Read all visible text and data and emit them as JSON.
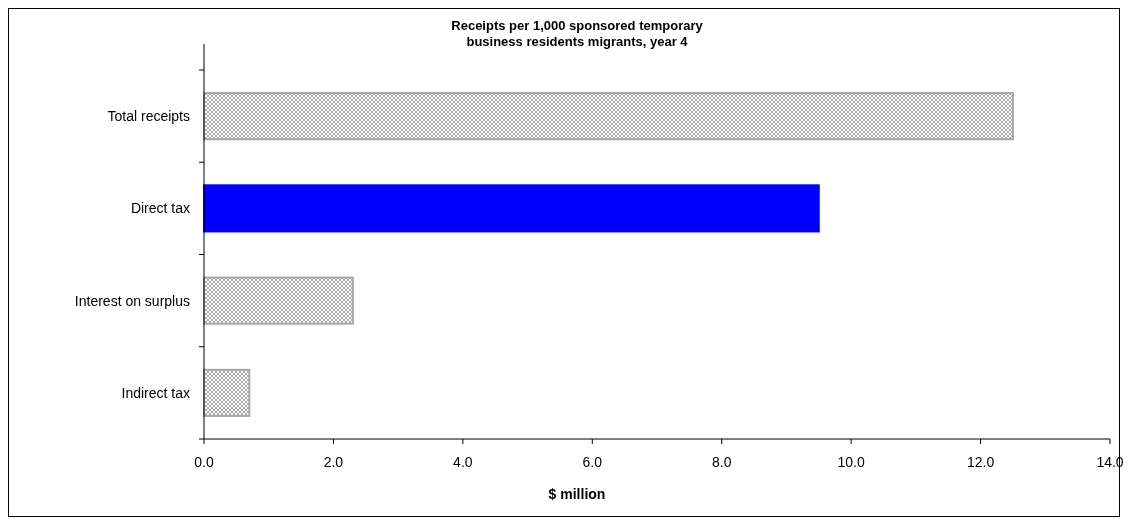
{
  "chart_data": {
    "type": "bar",
    "orientation": "horizontal",
    "title": "Receipts per 1,000 sponsored temporary\nbusiness residents migrants, year 4",
    "xlabel": "$ million",
    "categories": [
      "Total receipts",
      "Direct tax",
      "Interest on surplus",
      "Indirect tax"
    ],
    "values": [
      12.5,
      9.5,
      2.3,
      0.7
    ],
    "colors": [
      "#a8a8a8",
      "#0000ff",
      "#a8a8a8",
      "#a8a8a8"
    ],
    "xlim": [
      0,
      14
    ],
    "xticks": [
      {
        "value": 0,
        "label": "0.0"
      },
      {
        "value": 2,
        "label": "2.0"
      },
      {
        "value": 4,
        "label": "4.0"
      },
      {
        "value": 6,
        "label": "6.0"
      },
      {
        "value": 8,
        "label": "8.0"
      },
      {
        "value": 10,
        "label": "10.0"
      },
      {
        "value": 12,
        "label": "12.0"
      },
      {
        "value": 14,
        "label": "14.0"
      }
    ],
    "grid": false
  }
}
